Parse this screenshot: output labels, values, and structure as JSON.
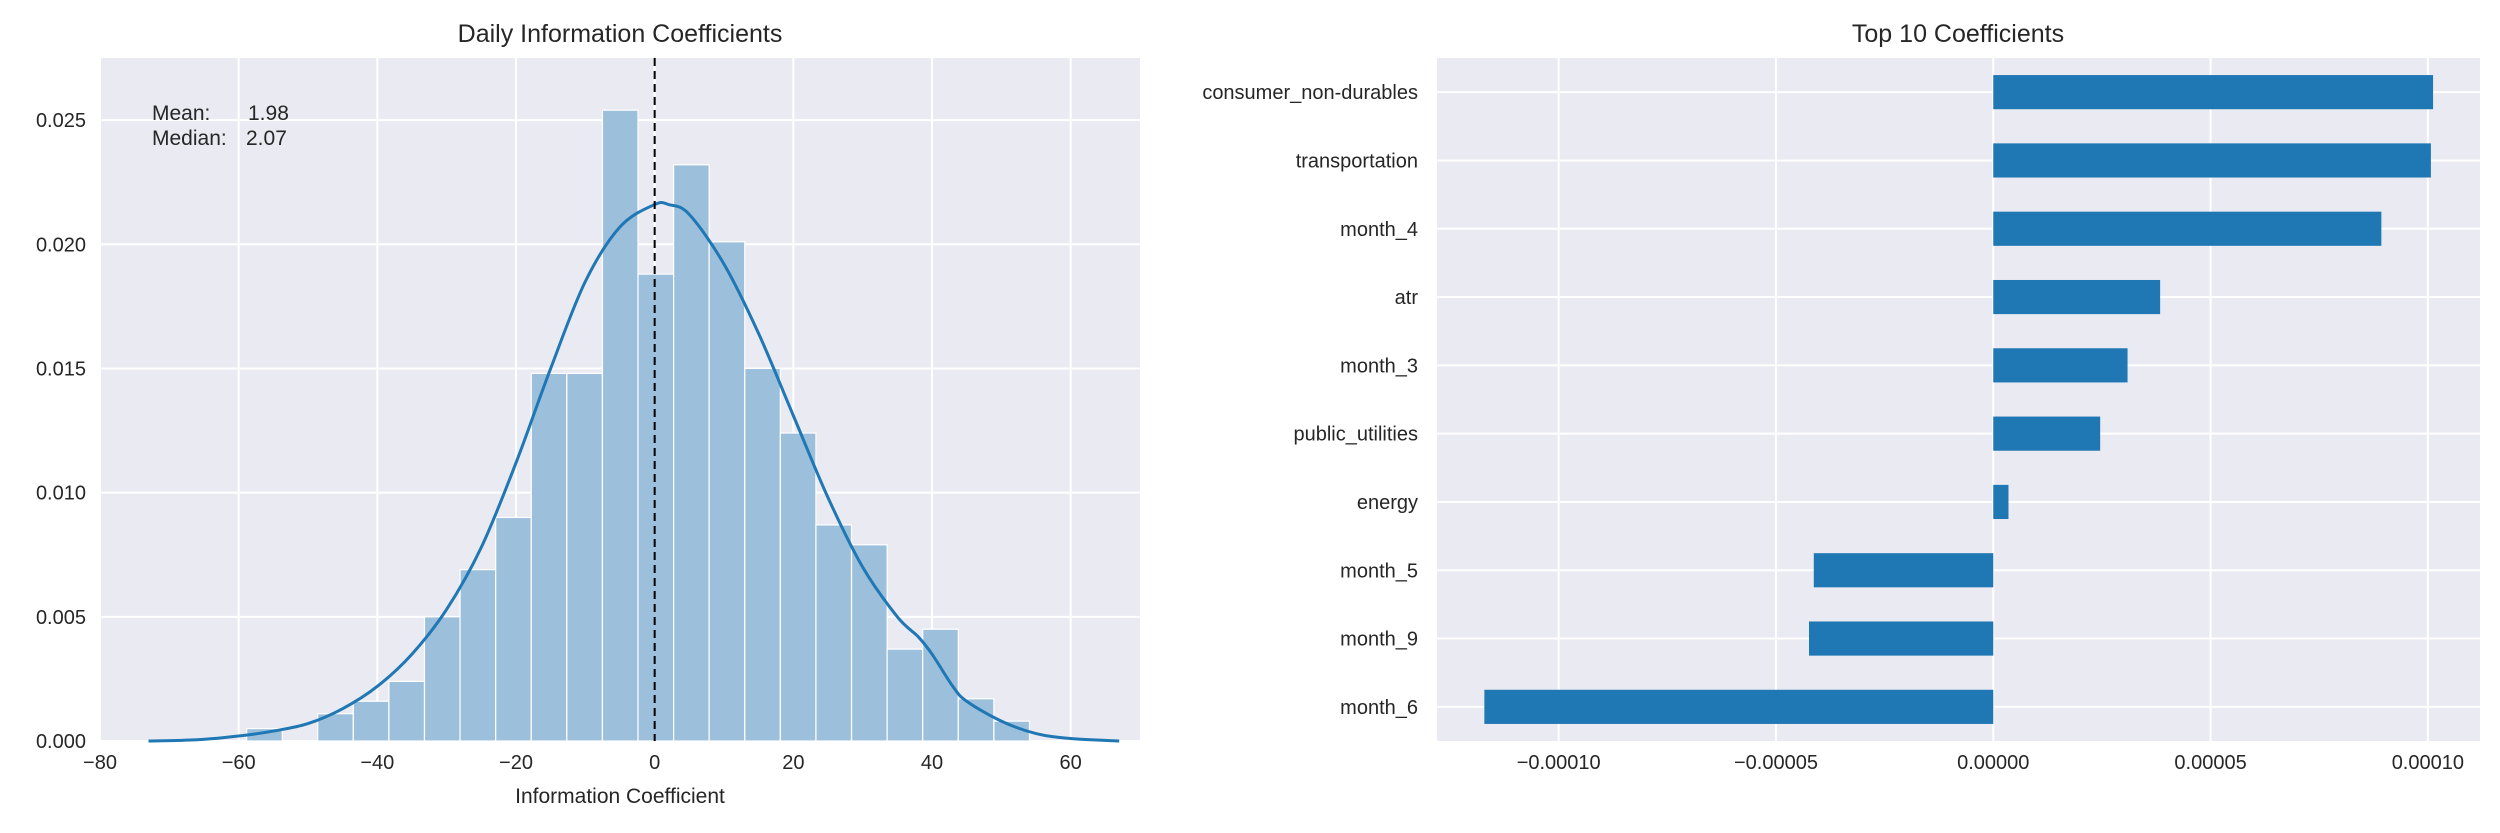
{
  "chart_data": [
    {
      "type": "histogram",
      "title": "Daily Information Coefficients",
      "xlabel": "Information Coefficient",
      "ylabel": "",
      "xlim": [
        -80,
        70
      ],
      "ylim": [
        0,
        0.0275
      ],
      "xticks": [
        -80,
        -60,
        -40,
        -20,
        0,
        20,
        40,
        60
      ],
      "xtick_labels": [
        "−80",
        "−60",
        "−40",
        "−20",
        "0",
        "20",
        "40",
        "60"
      ],
      "yticks": [
        0,
        0.005,
        0.01,
        0.015,
        0.02,
        0.025
      ],
      "ytick_labels": [
        "0.000",
        "0.005",
        "0.010",
        "0.015",
        "0.020",
        "0.025"
      ],
      "grid": true,
      "bin_width": 5.13,
      "bins": [
        {
          "x0": -58.85,
          "value": 0.0005
        },
        {
          "x0": -48.6,
          "value": 0.0011
        },
        {
          "x0": -43.46,
          "value": 0.0016
        },
        {
          "x0": -38.33,
          "value": 0.0024
        },
        {
          "x0": -33.2,
          "value": 0.005
        },
        {
          "x0": -28.07,
          "value": 0.0069
        },
        {
          "x0": -22.93,
          "value": 0.009
        },
        {
          "x0": -17.8,
          "value": 0.0148
        },
        {
          "x0": -12.67,
          "value": 0.0148
        },
        {
          "x0": -7.53,
          "value": 0.0254
        },
        {
          "x0": -2.4,
          "value": 0.0188
        },
        {
          "x0": 2.73,
          "value": 0.0232
        },
        {
          "x0": 7.86,
          "value": 0.0201
        },
        {
          "x0": 13.0,
          "value": 0.015
        },
        {
          "x0": 18.13,
          "value": 0.0124
        },
        {
          "x0": 23.26,
          "value": 0.0087
        },
        {
          "x0": 28.4,
          "value": 0.0079
        },
        {
          "x0": 33.53,
          "value": 0.0037
        },
        {
          "x0": 38.66,
          "value": 0.0045
        },
        {
          "x0": 43.79,
          "value": 0.0017
        },
        {
          "x0": 48.93,
          "value": 0.0008
        }
      ],
      "kde": {
        "x": [
          -73,
          -66,
          -60,
          -55,
          -50,
          -45,
          -40,
          -35,
          -30,
          -25,
          -20,
          -15,
          -10,
          -5,
          0,
          2,
          5,
          10,
          15,
          20,
          25,
          30,
          35,
          38,
          40,
          43,
          45,
          50,
          55,
          60,
          67
        ],
        "y": [
          0.0,
          5e-05,
          0.0002,
          0.0004,
          0.0007,
          0.0013,
          0.0022,
          0.0035,
          0.0053,
          0.0078,
          0.0112,
          0.015,
          0.0185,
          0.0207,
          0.0216,
          0.0216,
          0.0212,
          0.0192,
          0.0164,
          0.0131,
          0.0098,
          0.007,
          0.005,
          0.0042,
          0.0035,
          0.0022,
          0.0016,
          0.0008,
          0.0003,
          0.0001,
          0.0
        ]
      },
      "vline_x": 0,
      "annotation": {
        "mean_label": "Mean:",
        "mean_value": "1.98",
        "median_label": "Median:",
        "median_value": "2.07"
      }
    },
    {
      "type": "bar",
      "orientation": "horizontal",
      "title": "Top 10 Coefficients",
      "xlabel": "",
      "ylabel": "",
      "xlim": [
        -0.000128,
        0.000112
      ],
      "xticks": [
        -0.0001,
        -5e-05,
        0,
        5e-05,
        0.0001
      ],
      "xtick_labels": [
        "−0.00010",
        "−0.00005",
        "0.00000",
        "0.00005",
        "0.00010"
      ],
      "grid": true,
      "categories": [
        "consumer_non-durables",
        "transportation",
        "month_4",
        "atr",
        "month_3",
        "public_utilities",
        "energy",
        "month_5",
        "month_9",
        "month_6"
      ],
      "values": [
        0.0001012,
        0.0001007,
        8.93e-05,
        3.84e-05,
        3.09e-05,
        2.46e-05,
        3.5e-06,
        -4.13e-05,
        -4.24e-05,
        -0.0001171
      ]
    }
  ],
  "colors": {
    "axes_bg": "#eaeaf2",
    "grid": "#ffffff",
    "hist_fill": "#9cbfdc",
    "kde_line": "#1f77b4",
    "bar_fill": "#1f77b4",
    "vline": "#000000"
  }
}
